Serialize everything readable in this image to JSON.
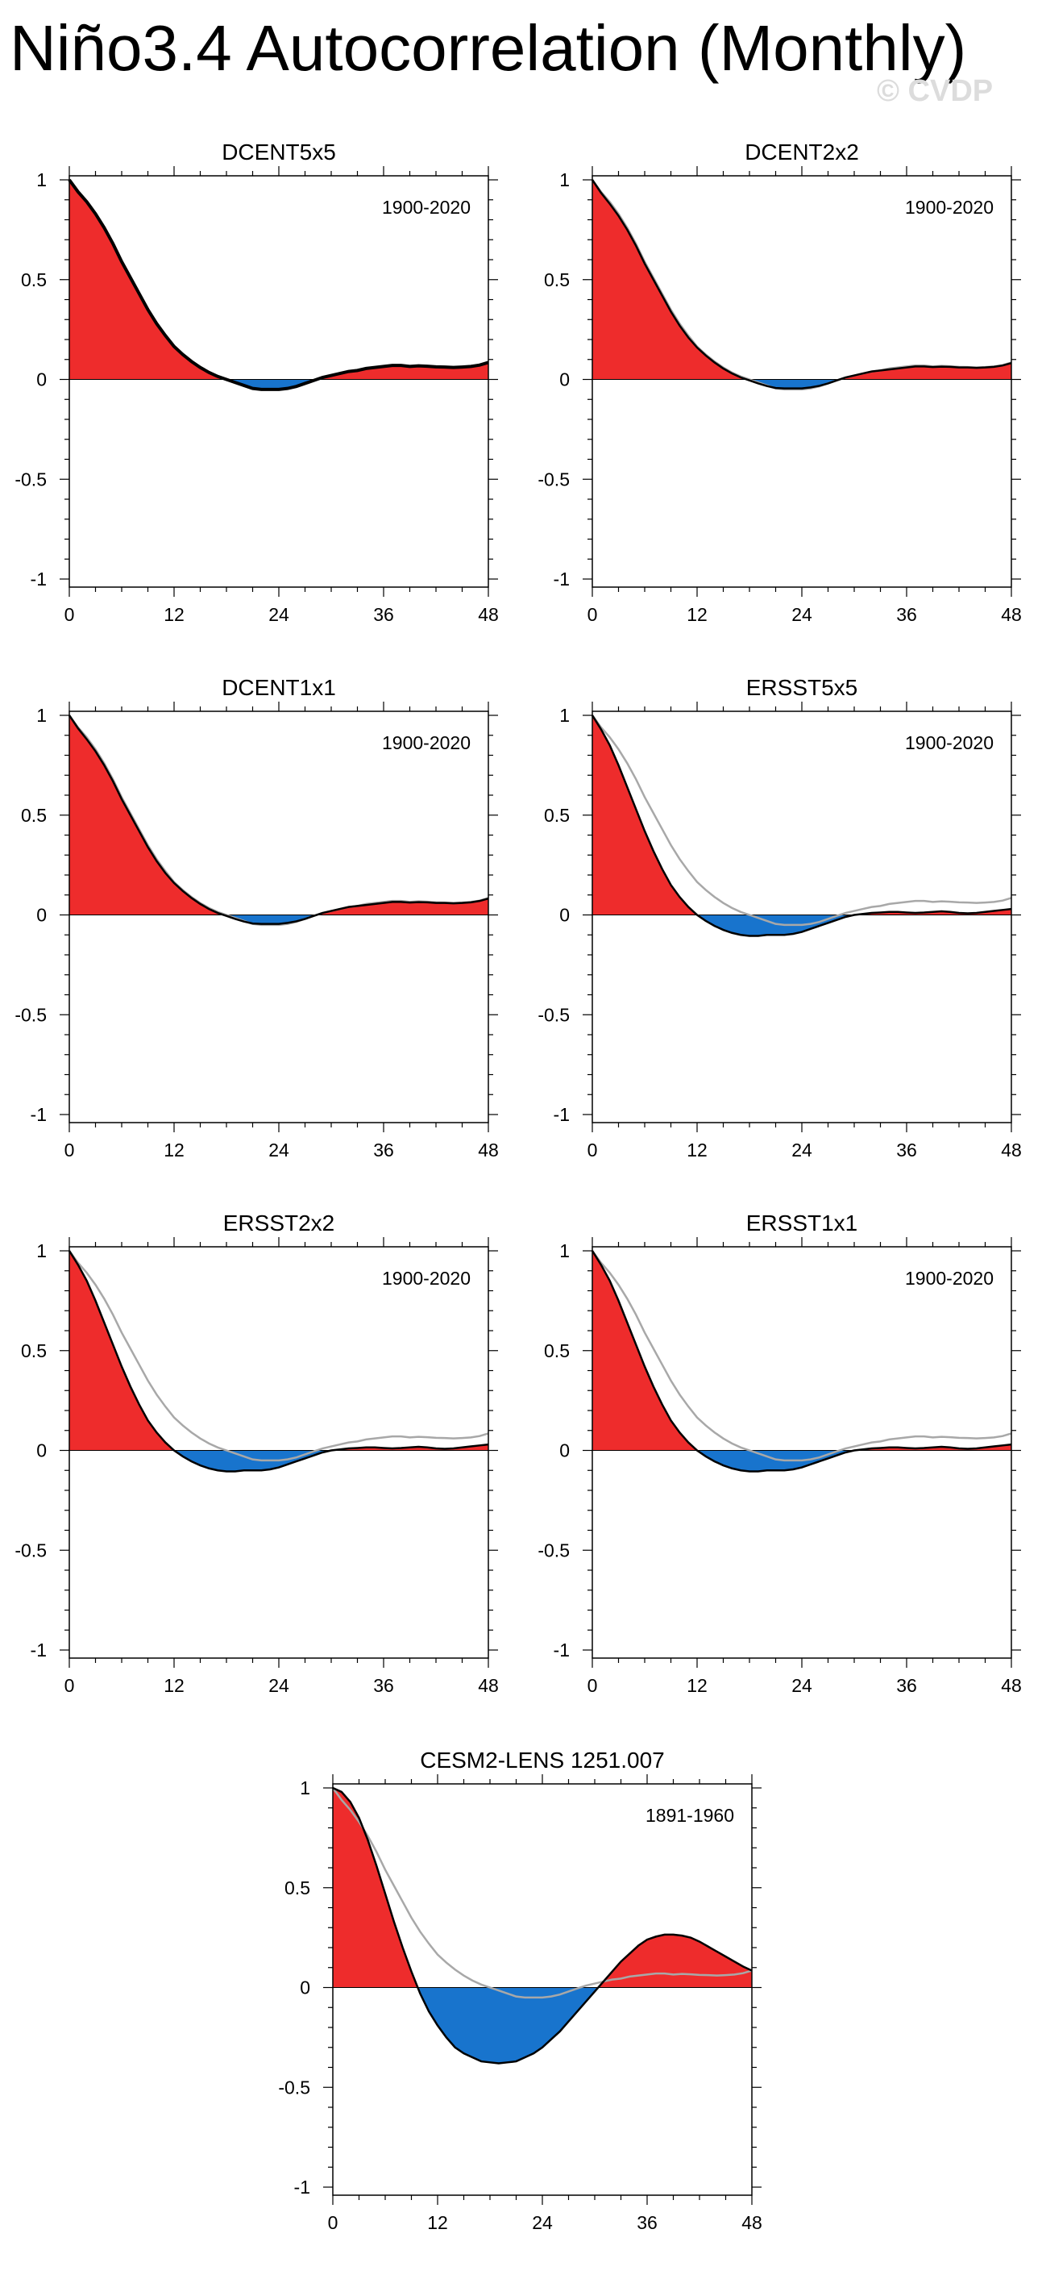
{
  "title": "Niño3.4 Autocorrelation (Monthly)",
  "watermark": "© CVDP",
  "colors": {
    "positive": "#ee2c2c",
    "negative": "#1874cd",
    "line": "#000000",
    "reference": "#a8a8a8"
  },
  "chart_data": [
    {
      "type": "area",
      "title": "DCENT5x5",
      "period": "1900-2020",
      "xlim": [
        0,
        48
      ],
      "ylim": [
        -1,
        1
      ],
      "xticks": [
        0,
        12,
        24,
        36,
        48
      ],
      "yticks": [
        1,
        0.5,
        0,
        -0.5,
        -1
      ],
      "yticklabels": [
        "1",
        "0.5",
        "0",
        "-0.5",
        "-1"
      ],
      "x": [
        0,
        1,
        2,
        3,
        4,
        5,
        6,
        7,
        8,
        9,
        10,
        11,
        12,
        13,
        14,
        15,
        16,
        17,
        18,
        19,
        20,
        21,
        22,
        23,
        24,
        25,
        26,
        27,
        28,
        29,
        30,
        31,
        32,
        33,
        34,
        35,
        36,
        37,
        38,
        39,
        40,
        41,
        42,
        43,
        44,
        45,
        46,
        47,
        48
      ],
      "values": [
        1.0,
        0.94,
        0.89,
        0.83,
        0.76,
        0.68,
        0.59,
        0.51,
        0.43,
        0.35,
        0.28,
        0.22,
        0.165,
        0.125,
        0.09,
        0.06,
        0.035,
        0.015,
        0.0,
        -0.015,
        -0.03,
        -0.045,
        -0.05,
        -0.05,
        -0.05,
        -0.045,
        -0.035,
        -0.02,
        -0.005,
        0.01,
        0.02,
        0.03,
        0.04,
        0.045,
        0.055,
        0.06,
        0.065,
        0.07,
        0.07,
        0.065,
        0.068,
        0.066,
        0.063,
        0.062,
        0.06,
        0.062,
        0.065,
        0.072,
        0.085
      ],
      "reference": [
        1.0,
        0.94,
        0.89,
        0.83,
        0.76,
        0.68,
        0.59,
        0.51,
        0.43,
        0.35,
        0.28,
        0.22,
        0.165,
        0.125,
        0.09,
        0.06,
        0.035,
        0.015,
        0.0,
        -0.015,
        -0.03,
        -0.045,
        -0.05,
        -0.05,
        -0.05,
        -0.045,
        -0.035,
        -0.02,
        -0.005,
        0.01,
        0.02,
        0.03,
        0.04,
        0.045,
        0.055,
        0.06,
        0.065,
        0.07,
        0.07,
        0.065,
        0.068,
        0.066,
        0.063,
        0.062,
        0.06,
        0.062,
        0.065,
        0.072,
        0.085
      ]
    },
    {
      "type": "area",
      "title": "DCENT2x2",
      "period": "1900-2020",
      "xlim": [
        0,
        48
      ],
      "ylim": [
        -1,
        1
      ],
      "xticks": [
        0,
        12,
        24,
        36,
        48
      ],
      "yticks": [
        1,
        0.5,
        0,
        -0.5,
        -1
      ],
      "yticklabels": [
        "1",
        "0.5",
        "0",
        "-0.5",
        "-1"
      ],
      "x": [
        0,
        1,
        2,
        3,
        4,
        5,
        6,
        7,
        8,
        9,
        10,
        11,
        12,
        13,
        14,
        15,
        16,
        17,
        18,
        19,
        20,
        21,
        22,
        23,
        24,
        25,
        26,
        27,
        28,
        29,
        30,
        31,
        32,
        33,
        34,
        35,
        36,
        37,
        38,
        39,
        40,
        41,
        42,
        43,
        44,
        45,
        46,
        47,
        48
      ],
      "values": [
        1.0,
        0.935,
        0.88,
        0.82,
        0.75,
        0.67,
        0.58,
        0.5,
        0.42,
        0.34,
        0.27,
        0.21,
        0.16,
        0.12,
        0.085,
        0.055,
        0.03,
        0.01,
        -0.005,
        -0.02,
        -0.033,
        -0.043,
        -0.045,
        -0.045,
        -0.045,
        -0.04,
        -0.032,
        -0.02,
        -0.005,
        0.01,
        0.02,
        0.03,
        0.04,
        0.045,
        0.05,
        0.055,
        0.06,
        0.065,
        0.065,
        0.062,
        0.064,
        0.063,
        0.06,
        0.06,
        0.058,
        0.06,
        0.063,
        0.07,
        0.082
      ],
      "reference": [
        1.0,
        0.94,
        0.89,
        0.83,
        0.76,
        0.68,
        0.59,
        0.51,
        0.43,
        0.35,
        0.28,
        0.22,
        0.165,
        0.125,
        0.09,
        0.06,
        0.035,
        0.015,
        0.0,
        -0.015,
        -0.03,
        -0.045,
        -0.05,
        -0.05,
        -0.05,
        -0.045,
        -0.035,
        -0.02,
        -0.005,
        0.01,
        0.02,
        0.03,
        0.04,
        0.045,
        0.055,
        0.06,
        0.065,
        0.07,
        0.07,
        0.065,
        0.068,
        0.066,
        0.063,
        0.062,
        0.06,
        0.062,
        0.065,
        0.072,
        0.085
      ]
    },
    {
      "type": "area",
      "title": "DCENT1x1",
      "period": "1900-2020",
      "xlim": [
        0,
        48
      ],
      "ylim": [
        -1,
        1
      ],
      "xticks": [
        0,
        12,
        24,
        36,
        48
      ],
      "yticks": [
        1,
        0.5,
        0,
        -0.5,
        -1
      ],
      "yticklabels": [
        "1",
        "0.5",
        "0",
        "-0.5",
        "-1"
      ],
      "x": [
        0,
        1,
        2,
        3,
        4,
        5,
        6,
        7,
        8,
        9,
        10,
        11,
        12,
        13,
        14,
        15,
        16,
        17,
        18,
        19,
        20,
        21,
        22,
        23,
        24,
        25,
        26,
        27,
        28,
        29,
        30,
        31,
        32,
        33,
        34,
        35,
        36,
        37,
        38,
        39,
        40,
        41,
        42,
        43,
        44,
        45,
        46,
        47,
        48
      ],
      "values": [
        1.0,
        0.935,
        0.88,
        0.82,
        0.75,
        0.67,
        0.58,
        0.5,
        0.42,
        0.34,
        0.27,
        0.21,
        0.16,
        0.12,
        0.085,
        0.055,
        0.03,
        0.01,
        -0.005,
        -0.02,
        -0.033,
        -0.043,
        -0.045,
        -0.045,
        -0.045,
        -0.04,
        -0.032,
        -0.02,
        -0.005,
        0.01,
        0.02,
        0.03,
        0.04,
        0.045,
        0.05,
        0.055,
        0.06,
        0.065,
        0.065,
        0.062,
        0.064,
        0.063,
        0.06,
        0.06,
        0.058,
        0.06,
        0.063,
        0.07,
        0.082
      ],
      "reference": [
        1.0,
        0.94,
        0.89,
        0.83,
        0.76,
        0.68,
        0.59,
        0.51,
        0.43,
        0.35,
        0.28,
        0.22,
        0.165,
        0.125,
        0.09,
        0.06,
        0.035,
        0.015,
        0.0,
        -0.015,
        -0.03,
        -0.045,
        -0.05,
        -0.05,
        -0.05,
        -0.045,
        -0.035,
        -0.02,
        -0.005,
        0.01,
        0.02,
        0.03,
        0.04,
        0.045,
        0.055,
        0.06,
        0.065,
        0.07,
        0.07,
        0.065,
        0.068,
        0.066,
        0.063,
        0.062,
        0.06,
        0.062,
        0.065,
        0.072,
        0.085
      ]
    },
    {
      "type": "area",
      "title": "ERSST5x5",
      "period": "1900-2020",
      "xlim": [
        0,
        48
      ],
      "ylim": [
        -1,
        1
      ],
      "xticks": [
        0,
        12,
        24,
        36,
        48
      ],
      "yticks": [
        1,
        0.5,
        0,
        -0.5,
        -1
      ],
      "yticklabels": [
        "1",
        "0.5",
        "0",
        "-0.5",
        "-1"
      ],
      "x": [
        0,
        1,
        2,
        3,
        4,
        5,
        6,
        7,
        8,
        9,
        10,
        11,
        12,
        13,
        14,
        15,
        16,
        17,
        18,
        19,
        20,
        21,
        22,
        23,
        24,
        25,
        26,
        27,
        28,
        29,
        30,
        31,
        32,
        33,
        34,
        35,
        36,
        37,
        38,
        39,
        40,
        41,
        42,
        43,
        44,
        45,
        46,
        47,
        48
      ],
      "values": [
        1.0,
        0.93,
        0.85,
        0.75,
        0.64,
        0.53,
        0.42,
        0.32,
        0.23,
        0.15,
        0.09,
        0.04,
        0.0,
        -0.03,
        -0.055,
        -0.075,
        -0.09,
        -0.1,
        -0.105,
        -0.105,
        -0.1,
        -0.1,
        -0.1,
        -0.095,
        -0.085,
        -0.07,
        -0.055,
        -0.04,
        -0.025,
        -0.01,
        0.0,
        0.005,
        0.01,
        0.012,
        0.015,
        0.015,
        0.012,
        0.01,
        0.012,
        0.015,
        0.018,
        0.015,
        0.01,
        0.008,
        0.01,
        0.015,
        0.02,
        0.025,
        0.03
      ],
      "reference": [
        1.0,
        0.94,
        0.89,
        0.83,
        0.76,
        0.68,
        0.59,
        0.51,
        0.43,
        0.35,
        0.28,
        0.22,
        0.165,
        0.125,
        0.09,
        0.06,
        0.035,
        0.015,
        0.0,
        -0.015,
        -0.03,
        -0.045,
        -0.05,
        -0.05,
        -0.05,
        -0.045,
        -0.035,
        -0.02,
        -0.005,
        0.01,
        0.02,
        0.03,
        0.04,
        0.045,
        0.055,
        0.06,
        0.065,
        0.07,
        0.07,
        0.065,
        0.068,
        0.066,
        0.063,
        0.062,
        0.06,
        0.062,
        0.065,
        0.072,
        0.085
      ]
    },
    {
      "type": "area",
      "title": "ERSST2x2",
      "period": "1900-2020",
      "xlim": [
        0,
        48
      ],
      "ylim": [
        -1,
        1
      ],
      "xticks": [
        0,
        12,
        24,
        36,
        48
      ],
      "yticks": [
        1,
        0.5,
        0,
        -0.5,
        -1
      ],
      "yticklabels": [
        "1",
        "0.5",
        "0",
        "-0.5",
        "-1"
      ],
      "x": [
        0,
        1,
        2,
        3,
        4,
        5,
        6,
        7,
        8,
        9,
        10,
        11,
        12,
        13,
        14,
        15,
        16,
        17,
        18,
        19,
        20,
        21,
        22,
        23,
        24,
        25,
        26,
        27,
        28,
        29,
        30,
        31,
        32,
        33,
        34,
        35,
        36,
        37,
        38,
        39,
        40,
        41,
        42,
        43,
        44,
        45,
        46,
        47,
        48
      ],
      "values": [
        1.0,
        0.93,
        0.85,
        0.75,
        0.64,
        0.53,
        0.42,
        0.32,
        0.23,
        0.15,
        0.09,
        0.04,
        0.0,
        -0.03,
        -0.055,
        -0.075,
        -0.09,
        -0.1,
        -0.105,
        -0.105,
        -0.1,
        -0.1,
        -0.1,
        -0.095,
        -0.085,
        -0.07,
        -0.055,
        -0.04,
        -0.025,
        -0.01,
        0.0,
        0.005,
        0.01,
        0.012,
        0.015,
        0.015,
        0.012,
        0.01,
        0.012,
        0.015,
        0.018,
        0.015,
        0.01,
        0.008,
        0.01,
        0.015,
        0.02,
        0.025,
        0.03
      ],
      "reference": [
        1.0,
        0.94,
        0.89,
        0.83,
        0.76,
        0.68,
        0.59,
        0.51,
        0.43,
        0.35,
        0.28,
        0.22,
        0.165,
        0.125,
        0.09,
        0.06,
        0.035,
        0.015,
        0.0,
        -0.015,
        -0.03,
        -0.045,
        -0.05,
        -0.05,
        -0.05,
        -0.045,
        -0.035,
        -0.02,
        -0.005,
        0.01,
        0.02,
        0.03,
        0.04,
        0.045,
        0.055,
        0.06,
        0.065,
        0.07,
        0.07,
        0.065,
        0.068,
        0.066,
        0.063,
        0.062,
        0.06,
        0.062,
        0.065,
        0.072,
        0.085
      ]
    },
    {
      "type": "area",
      "title": "ERSST1x1",
      "period": "1900-2020",
      "xlim": [
        0,
        48
      ],
      "ylim": [
        -1,
        1
      ],
      "xticks": [
        0,
        12,
        24,
        36,
        48
      ],
      "yticks": [
        1,
        0.5,
        0,
        -0.5,
        -1
      ],
      "yticklabels": [
        "1",
        "0.5",
        "0",
        "-0.5",
        "-1"
      ],
      "x": [
        0,
        1,
        2,
        3,
        4,
        5,
        6,
        7,
        8,
        9,
        10,
        11,
        12,
        13,
        14,
        15,
        16,
        17,
        18,
        19,
        20,
        21,
        22,
        23,
        24,
        25,
        26,
        27,
        28,
        29,
        30,
        31,
        32,
        33,
        34,
        35,
        36,
        37,
        38,
        39,
        40,
        41,
        42,
        43,
        44,
        45,
        46,
        47,
        48
      ],
      "values": [
        1.0,
        0.93,
        0.85,
        0.75,
        0.64,
        0.53,
        0.42,
        0.32,
        0.23,
        0.15,
        0.09,
        0.04,
        0.0,
        -0.03,
        -0.055,
        -0.075,
        -0.09,
        -0.1,
        -0.105,
        -0.105,
        -0.1,
        -0.1,
        -0.1,
        -0.095,
        -0.085,
        -0.07,
        -0.055,
        -0.04,
        -0.025,
        -0.01,
        0.0,
        0.005,
        0.01,
        0.012,
        0.015,
        0.015,
        0.012,
        0.01,
        0.012,
        0.015,
        0.018,
        0.015,
        0.01,
        0.008,
        0.01,
        0.015,
        0.02,
        0.025,
        0.03
      ],
      "reference": [
        1.0,
        0.94,
        0.89,
        0.83,
        0.76,
        0.68,
        0.59,
        0.51,
        0.43,
        0.35,
        0.28,
        0.22,
        0.165,
        0.125,
        0.09,
        0.06,
        0.035,
        0.015,
        0.0,
        -0.015,
        -0.03,
        -0.045,
        -0.05,
        -0.05,
        -0.05,
        -0.045,
        -0.035,
        -0.02,
        -0.005,
        0.01,
        0.02,
        0.03,
        0.04,
        0.045,
        0.055,
        0.06,
        0.065,
        0.07,
        0.07,
        0.065,
        0.068,
        0.066,
        0.063,
        0.062,
        0.06,
        0.062,
        0.065,
        0.072,
        0.085
      ]
    },
    {
      "type": "area",
      "title": "CESM2-LENS 1251.007",
      "period": "1891-1960",
      "xlim": [
        0,
        48
      ],
      "ylim": [
        -1,
        1
      ],
      "xticks": [
        0,
        12,
        24,
        36,
        48
      ],
      "yticks": [
        1,
        0.5,
        0,
        -0.5,
        -1
      ],
      "yticklabels": [
        "1",
        "0.5",
        "0",
        "-0.5",
        "-1"
      ],
      "x": [
        0,
        1,
        2,
        3,
        4,
        5,
        6,
        7,
        8,
        9,
        10,
        11,
        12,
        13,
        14,
        15,
        16,
        17,
        18,
        19,
        20,
        21,
        22,
        23,
        24,
        25,
        26,
        27,
        28,
        29,
        30,
        31,
        32,
        33,
        34,
        35,
        36,
        37,
        38,
        39,
        40,
        41,
        42,
        43,
        44,
        45,
        46,
        47,
        48
      ],
      "values": [
        1.0,
        0.98,
        0.93,
        0.85,
        0.74,
        0.61,
        0.47,
        0.33,
        0.2,
        0.08,
        -0.03,
        -0.12,
        -0.19,
        -0.25,
        -0.3,
        -0.33,
        -0.35,
        -0.37,
        -0.375,
        -0.38,
        -0.375,
        -0.37,
        -0.35,
        -0.33,
        -0.3,
        -0.26,
        -0.22,
        -0.17,
        -0.12,
        -0.07,
        -0.02,
        0.03,
        0.08,
        0.13,
        0.17,
        0.21,
        0.24,
        0.255,
        0.265,
        0.265,
        0.26,
        0.25,
        0.23,
        0.205,
        0.18,
        0.155,
        0.13,
        0.105,
        0.085
      ],
      "reference": [
        1.0,
        0.94,
        0.89,
        0.83,
        0.76,
        0.68,
        0.59,
        0.51,
        0.43,
        0.35,
        0.28,
        0.22,
        0.165,
        0.125,
        0.09,
        0.06,
        0.035,
        0.015,
        0.0,
        -0.015,
        -0.03,
        -0.045,
        -0.05,
        -0.05,
        -0.05,
        -0.045,
        -0.035,
        -0.02,
        -0.005,
        0.01,
        0.02,
        0.03,
        0.04,
        0.045,
        0.055,
        0.06,
        0.065,
        0.07,
        0.07,
        0.065,
        0.068,
        0.066,
        0.063,
        0.062,
        0.06,
        0.062,
        0.065,
        0.072,
        0.085
      ]
    }
  ]
}
